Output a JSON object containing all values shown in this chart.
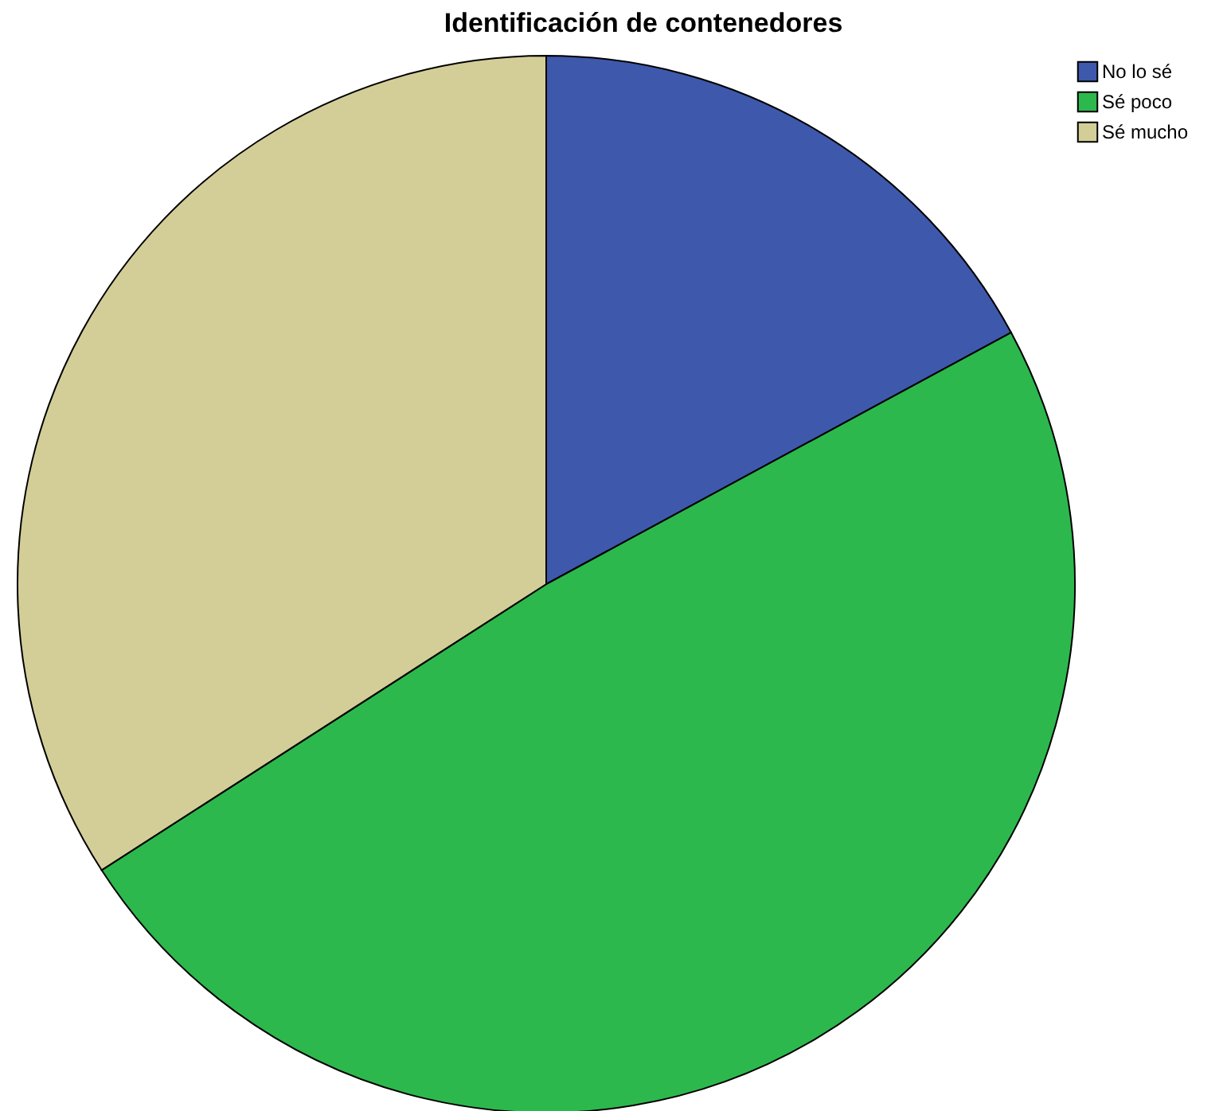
{
  "chart_data": {
    "type": "pie",
    "title": "Identificación de contenedores",
    "categories": [
      "No lo sé",
      "Sé poco",
      "Sé mucho"
    ],
    "values": [
      17.1,
      48.8,
      34.1
    ],
    "colors": [
      "#3e58ac",
      "#2db84d",
      "#d3ce97"
    ],
    "legend": "top right"
  }
}
